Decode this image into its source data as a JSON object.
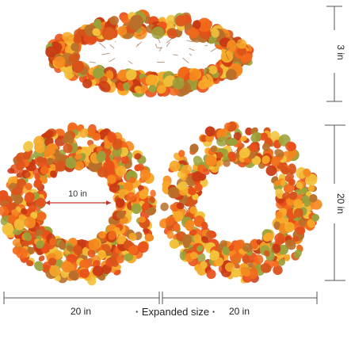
{
  "dimensions": {
    "top_height": "3 in",
    "inner_diameter": "10 in",
    "right_height": "20 in",
    "left_width": "20 in",
    "right_width": "20 in"
  },
  "caption": {
    "text": "Expanded size",
    "bullet": "·"
  },
  "colors": {
    "leaf_palette": [
      "#f26a1b",
      "#f58a1f",
      "#e8501a",
      "#f7a928",
      "#f3c23a",
      "#d9541a",
      "#b8702a",
      "#9aa23a",
      "#c93a14"
    ],
    "twig": "#8a5a32",
    "dimension_line": "#555555"
  }
}
